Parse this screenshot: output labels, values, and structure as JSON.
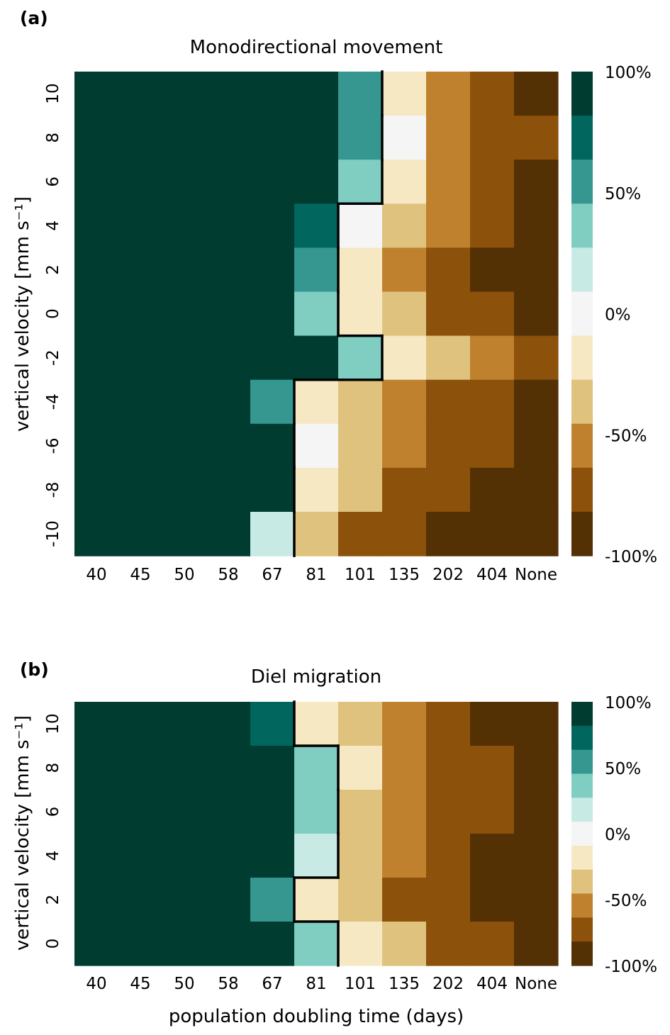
{
  "colors": [
    "#543005",
    "#8c510a",
    "#bf812d",
    "#dfc27d",
    "#f6e8c3",
    "#f5f5f5",
    "#c7eae5",
    "#80cdc1",
    "#35978f",
    "#01665e",
    "#003c30"
  ],
  "chart_data": [
    {
      "type": "heatmap",
      "panel_label": "(a)",
      "title": "Monodirectional movement",
      "xlabel": "",
      "ylabel": "vertical velocity [mm s⁻¹]",
      "x_ticks": [
        "40",
        "45",
        "50",
        "58",
        "67",
        "81",
        "101",
        "135",
        "202",
        "404",
        "None"
      ],
      "y_ticks": [
        "10",
        "8",
        "6",
        "4",
        "2",
        "0",
        "-2",
        "-4",
        "-6",
        "-8",
        "-10"
      ],
      "value_unit": "%",
      "colorbar_ticks": [
        "100%",
        "50%",
        "0%",
        "-50%",
        "-100%"
      ],
      "values": [
        [
          100,
          100,
          100,
          100,
          100,
          100,
          55,
          -15,
          -55,
          -75,
          -95
        ],
        [
          100,
          100,
          100,
          100,
          100,
          100,
          55,
          0,
          -55,
          -75,
          -75
        ],
        [
          100,
          100,
          100,
          100,
          100,
          100,
          35,
          -15,
          -55,
          -75,
          -95
        ],
        [
          100,
          100,
          100,
          100,
          100,
          75,
          0,
          -35,
          -55,
          -75,
          -95
        ],
        [
          100,
          100,
          100,
          100,
          100,
          55,
          -15,
          -55,
          -75,
          -95,
          -95
        ],
        [
          100,
          100,
          100,
          100,
          100,
          35,
          -15,
          -35,
          -75,
          -75,
          -95
        ],
        [
          100,
          100,
          100,
          100,
          100,
          100,
          35,
          -15,
          -35,
          -55,
          -75
        ],
        [
          100,
          100,
          100,
          100,
          55,
          -15,
          -35,
          -55,
          -75,
          -75,
          -95
        ],
        [
          100,
          100,
          100,
          100,
          100,
          0,
          -35,
          -55,
          -75,
          -75,
          -95
        ],
        [
          100,
          100,
          100,
          100,
          100,
          -15,
          -35,
          -75,
          -75,
          -95,
          -95
        ],
        [
          100,
          100,
          100,
          100,
          15,
          -35,
          -75,
          -75,
          -95,
          -95,
          -95
        ]
      ]
    },
    {
      "type": "heatmap",
      "panel_label": "(b)",
      "title": "Diel migration",
      "xlabel": "population doubling time (days)",
      "ylabel": "vertical velocity [mm s⁻¹]",
      "x_ticks": [
        "40",
        "45",
        "50",
        "58",
        "67",
        "81",
        "101",
        "135",
        "202",
        "404",
        "None"
      ],
      "y_ticks": [
        "10",
        "8",
        "6",
        "4",
        "2",
        "0"
      ],
      "value_unit": "%",
      "colorbar_ticks": [
        "100%",
        "50%",
        "0%",
        "-50%",
        "-100%"
      ],
      "values": [
        [
          100,
          100,
          100,
          100,
          75,
          -15,
          -35,
          -55,
          -75,
          -95,
          -95
        ],
        [
          100,
          100,
          100,
          100,
          100,
          35,
          -15,
          -55,
          -75,
          -75,
          -95
        ],
        [
          100,
          100,
          100,
          100,
          100,
          35,
          -35,
          -55,
          -75,
          -75,
          -95
        ],
        [
          100,
          100,
          100,
          100,
          100,
          15,
          -35,
          -55,
          -75,
          -95,
          -95
        ],
        [
          100,
          100,
          100,
          100,
          55,
          -15,
          -35,
          -75,
          -75,
          -95,
          -95
        ],
        [
          100,
          100,
          100,
          100,
          100,
          35,
          -15,
          -35,
          -75,
          -75,
          -95
        ]
      ]
    }
  ]
}
